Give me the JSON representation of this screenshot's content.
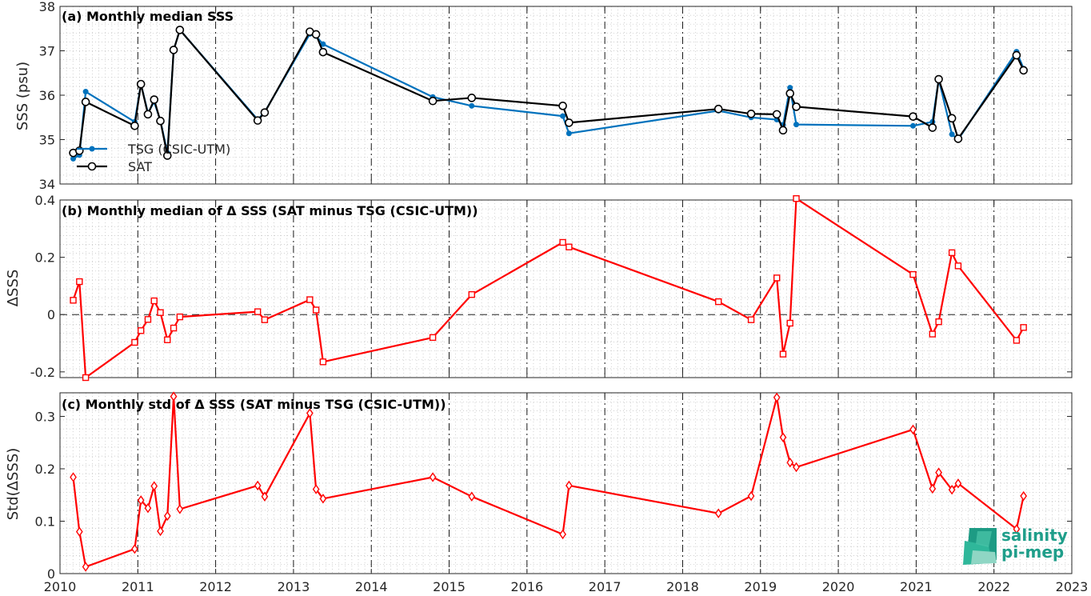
{
  "x_axis": {
    "ticks": [
      "2010",
      "2011",
      "2012",
      "2013",
      "2014",
      "2015",
      "2016",
      "2017",
      "2018",
      "2019",
      "2020",
      "2021",
      "2022",
      "2023"
    ],
    "range": [
      2010,
      2023
    ]
  },
  "logo": {
    "line1": "salinity",
    "line2": "pi-mep"
  },
  "colors": {
    "tsg": "#0072BD",
    "sat": "#000000",
    "delta": "#FF0000",
    "grid": "#bfbfbf",
    "vline": "#000000"
  },
  "chart_data": [
    {
      "type": "line",
      "title": "(a) Monthly median SSS",
      "ylabel": "SSS (psu)",
      "ylim": [
        34,
        38
      ],
      "yticks": [
        "34",
        "35",
        "36",
        "37",
        "38"
      ],
      "legend": {
        "placement": "lower-left",
        "entries": [
          "TSG (CSIC-UTM)",
          "SAT"
        ]
      },
      "series": [
        {
          "name": "TSG (CSIC-UTM)",
          "marker": "dot",
          "x": [
            2010.17,
            2010.25,
            2010.33,
            2010.96,
            2011.04,
            2011.13,
            2011.21,
            2011.29,
            2011.38,
            2011.46,
            2011.54,
            2012.54,
            2012.63,
            2013.21,
            2013.29,
            2013.38,
            2014.79,
            2015.29,
            2016.46,
            2016.54,
            2018.46,
            2018.88,
            2019.21,
            2019.29,
            2019.38,
            2019.46,
            2020.96,
            2021.21,
            2021.29,
            2021.46,
            2021.54,
            2022.29,
            2022.38
          ],
          "values": [
            34.57,
            34.65,
            36.08,
            35.4,
            36.25,
            35.6,
            35.85,
            35.43,
            34.7,
            37.02,
            37.47,
            35.45,
            35.62,
            37.38,
            37.33,
            37.15,
            35.96,
            35.76,
            35.53,
            35.14,
            35.65,
            35.5,
            35.45,
            35.33,
            36.17,
            35.34,
            35.31,
            35.4,
            36.36,
            35.12,
            35.0,
            36.98,
            36.6
          ]
        },
        {
          "name": "SAT",
          "marker": "circle",
          "x": [
            2010.17,
            2010.25,
            2010.33,
            2010.96,
            2011.04,
            2011.13,
            2011.21,
            2011.29,
            2011.38,
            2011.46,
            2011.54,
            2012.54,
            2012.63,
            2013.21,
            2013.29,
            2013.38,
            2014.79,
            2015.29,
            2016.46,
            2016.54,
            2018.46,
            2018.88,
            2019.21,
            2019.29,
            2019.38,
            2019.46,
            2020.96,
            2021.21,
            2021.29,
            2021.46,
            2021.54,
            2022.29,
            2022.38
          ],
          "values": [
            34.7,
            34.75,
            35.85,
            35.31,
            36.25,
            35.57,
            35.9,
            35.42,
            34.64,
            37.02,
            37.47,
            35.43,
            35.61,
            37.43,
            37.37,
            36.97,
            35.87,
            35.94,
            35.76,
            35.38,
            35.69,
            35.58,
            35.57,
            35.21,
            36.04,
            35.74,
            35.52,
            35.27,
            36.36,
            35.48,
            35.02,
            36.9,
            36.56
          ]
        }
      ]
    },
    {
      "type": "line",
      "title": "(b) Monthly median of Δ SSS (SAT minus TSG (CSIC-UTM))",
      "ylabel": "ΔSSS",
      "ylim": [
        -0.22,
        0.4
      ],
      "yticks": [
        "-0.2",
        "0",
        "0.2",
        "0.4"
      ],
      "series": [
        {
          "marker": "square",
          "x": [
            2010.17,
            2010.25,
            2010.33,
            2010.96,
            2011.04,
            2011.13,
            2011.21,
            2011.29,
            2011.38,
            2011.46,
            2011.54,
            2012.54,
            2012.63,
            2013.21,
            2013.29,
            2013.38,
            2014.79,
            2015.29,
            2016.46,
            2016.54,
            2018.46,
            2018.88,
            2019.21,
            2019.29,
            2019.38,
            2019.46,
            2020.96,
            2021.21,
            2021.29,
            2021.46,
            2021.54,
            2022.29,
            2022.38
          ],
          "values": [
            0.05,
            0.115,
            -0.22,
            -0.097,
            -0.056,
            -0.017,
            0.048,
            0.007,
            -0.088,
            -0.047,
            -0.008,
            0.01,
            -0.018,
            0.052,
            0.016,
            -0.165,
            -0.08,
            0.07,
            0.252,
            0.236,
            0.045,
            -0.018,
            0.128,
            -0.138,
            -0.03,
            0.405,
            0.14,
            -0.068,
            -0.025,
            0.216,
            0.17,
            -0.09,
            -0.045
          ]
        }
      ]
    },
    {
      "type": "line",
      "title": "(c) Monthly std of Δ SSS (SAT minus TSG (CSIC-UTM))",
      "ylabel": "Std(ΔSSS)",
      "ylim": [
        0,
        0.345
      ],
      "yticks": [
        "0",
        "0.1",
        "0.2",
        "0.3"
      ],
      "series": [
        {
          "marker": "diamond",
          "x": [
            2010.17,
            2010.25,
            2010.33,
            2010.96,
            2011.04,
            2011.13,
            2011.21,
            2011.29,
            2011.38,
            2011.46,
            2011.54,
            2012.54,
            2012.63,
            2013.21,
            2013.29,
            2013.38,
            2014.79,
            2015.29,
            2016.46,
            2016.54,
            2018.46,
            2018.88,
            2019.21,
            2019.29,
            2019.38,
            2019.46,
            2020.96,
            2021.21,
            2021.29,
            2021.46,
            2021.54,
            2022.29,
            2022.38
          ],
          "values": [
            0.184,
            0.08,
            0.013,
            0.047,
            0.14,
            0.125,
            0.167,
            0.081,
            0.11,
            0.338,
            0.123,
            0.168,
            0.147,
            0.306,
            0.161,
            0.143,
            0.184,
            0.147,
            0.075,
            0.168,
            0.115,
            0.148,
            0.336,
            0.26,
            0.212,
            0.203,
            0.275,
            0.162,
            0.193,
            0.16,
            0.172,
            0.085,
            0.148
          ]
        }
      ]
    }
  ]
}
